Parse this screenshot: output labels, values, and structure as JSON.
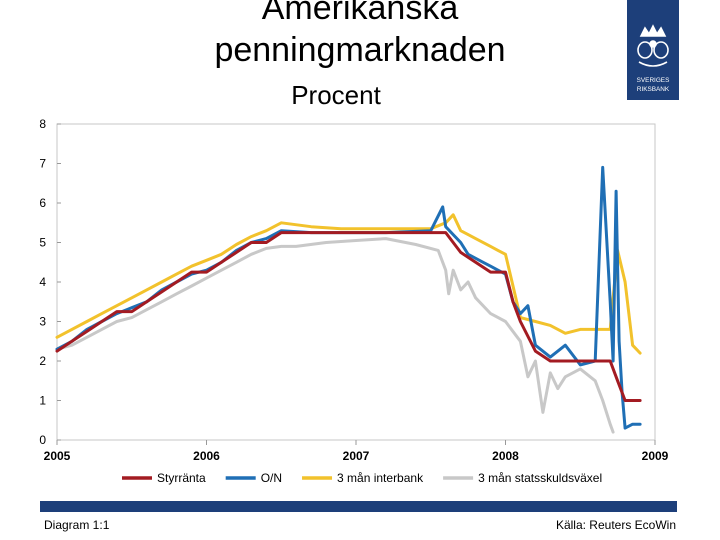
{
  "header": {
    "title_line1": "Amerikanska",
    "title_line2": "penningmarknaden",
    "subtitle": "Procent"
  },
  "logo": {
    "text1": "SVERIGES",
    "text2": "RIKSBANK",
    "icon": "riksbank-crown-emblem"
  },
  "footer": {
    "left": "Diagram 1:1",
    "right": "Källa: Reuters EcoWin"
  },
  "colors": {
    "brand": "#1d3f7a",
    "styrranta": "#a31b22",
    "on": "#1f6fb5",
    "interbank": "#f2c22c",
    "statsskuld": "#c8c8c8"
  },
  "chart_data": {
    "type": "line",
    "title": "",
    "xlabel": "",
    "ylabel": "",
    "xlim": [
      2005,
      2009
    ],
    "ylim": [
      0,
      8
    ],
    "x_ticks": [
      "2005",
      "2006",
      "2007",
      "2008",
      "2009"
    ],
    "y_ticks": [
      "0",
      "1",
      "2",
      "3",
      "4",
      "5",
      "6",
      "7",
      "8"
    ],
    "grid": false,
    "legend": "bottom",
    "series": [
      {
        "name": "Styrränta",
        "color": "#a31b22",
        "x": [
          2005.0,
          2005.1,
          2005.2,
          2005.3,
          2005.4,
          2005.5,
          2005.6,
          2005.7,
          2005.8,
          2005.9,
          2006.0,
          2006.1,
          2006.2,
          2006.3,
          2006.4,
          2006.5,
          2006.55,
          2006.7,
          2006.9,
          2007.2,
          2007.5,
          2007.6,
          2007.7,
          2007.8,
          2007.9,
          2008.0,
          2008.05,
          2008.1,
          2008.2,
          2008.3,
          2008.5,
          2008.7,
          2008.75,
          2008.8,
          2008.9
        ],
        "y": [
          2.25,
          2.5,
          2.75,
          3.0,
          3.25,
          3.25,
          3.5,
          3.75,
          4.0,
          4.25,
          4.25,
          4.5,
          4.75,
          5.0,
          5.0,
          5.25,
          5.25,
          5.25,
          5.25,
          5.25,
          5.25,
          5.25,
          4.75,
          4.5,
          4.25,
          4.25,
          3.5,
          3.0,
          2.25,
          2.0,
          2.0,
          2.0,
          1.5,
          1.0,
          1.0
        ]
      },
      {
        "name": "O/N",
        "color": "#1f6fb5",
        "x": [
          2005.0,
          2005.1,
          2005.2,
          2005.3,
          2005.4,
          2005.5,
          2005.6,
          2005.7,
          2005.8,
          2005.9,
          2006.0,
          2006.1,
          2006.2,
          2006.3,
          2006.4,
          2006.5,
          2006.7,
          2006.9,
          2007.2,
          2007.5,
          2007.58,
          2007.6,
          2007.65,
          2007.7,
          2007.75,
          2007.8,
          2007.85,
          2007.9,
          2007.95,
          2008.0,
          2008.05,
          2008.1,
          2008.15,
          2008.2,
          2008.3,
          2008.4,
          2008.5,
          2008.6,
          2008.65,
          2008.7,
          2008.72,
          2008.74,
          2008.76,
          2008.78,
          2008.8,
          2008.85,
          2008.9
        ],
        "y": [
          2.3,
          2.5,
          2.8,
          3.0,
          3.2,
          3.35,
          3.5,
          3.8,
          4.0,
          4.2,
          4.3,
          4.5,
          4.8,
          5.0,
          5.1,
          5.3,
          5.25,
          5.25,
          5.25,
          5.3,
          5.9,
          5.4,
          5.2,
          5.0,
          4.7,
          4.6,
          4.5,
          4.4,
          4.3,
          4.2,
          3.5,
          3.2,
          3.4,
          2.4,
          2.1,
          2.4,
          1.9,
          2.0,
          6.9,
          3.5,
          2.0,
          6.3,
          2.5,
          1.2,
          0.3,
          0.4,
          0.4
        ]
      },
      {
        "name": "3 mån interbank",
        "color": "#f2c22c",
        "x": [
          2005.0,
          2005.1,
          2005.2,
          2005.3,
          2005.4,
          2005.5,
          2005.6,
          2005.7,
          2005.8,
          2005.9,
          2006.0,
          2006.1,
          2006.2,
          2006.3,
          2006.4,
          2006.5,
          2006.7,
          2006.9,
          2007.2,
          2007.5,
          2007.6,
          2007.65,
          2007.7,
          2007.75,
          2007.8,
          2007.9,
          2007.95,
          2008.0,
          2008.05,
          2008.1,
          2008.2,
          2008.3,
          2008.4,
          2008.5,
          2008.6,
          2008.7,
          2008.75,
          2008.8,
          2008.85,
          2008.9
        ],
        "y": [
          2.6,
          2.8,
          3.0,
          3.2,
          3.4,
          3.6,
          3.8,
          4.0,
          4.2,
          4.4,
          4.55,
          4.7,
          4.95,
          5.15,
          5.3,
          5.5,
          5.4,
          5.35,
          5.35,
          5.35,
          5.5,
          5.7,
          5.3,
          5.2,
          5.1,
          4.9,
          4.8,
          4.7,
          3.9,
          3.1,
          3.0,
          2.9,
          2.7,
          2.8,
          2.8,
          2.8,
          4.8,
          4.0,
          2.4,
          2.2
        ]
      },
      {
        "name": "3 mån statsskuldsväxel",
        "color": "#c8c8c8",
        "x": [
          2005.0,
          2005.1,
          2005.2,
          2005.3,
          2005.4,
          2005.5,
          2005.6,
          2005.7,
          2005.8,
          2005.9,
          2006.0,
          2006.1,
          2006.2,
          2006.3,
          2006.4,
          2006.5,
          2006.6,
          2006.8,
          2007.0,
          2007.2,
          2007.4,
          2007.55,
          2007.6,
          2007.62,
          2007.65,
          2007.7,
          2007.75,
          2007.8,
          2007.9,
          2008.0,
          2008.1,
          2008.15,
          2008.2,
          2008.25,
          2008.3,
          2008.35,
          2008.4,
          2008.5,
          2008.6,
          2008.65,
          2008.7,
          2008.72
        ],
        "y": [
          2.3,
          2.4,
          2.6,
          2.8,
          3.0,
          3.1,
          3.3,
          3.5,
          3.7,
          3.9,
          4.1,
          4.3,
          4.5,
          4.7,
          4.85,
          4.9,
          4.9,
          5.0,
          5.05,
          5.1,
          4.95,
          4.8,
          4.3,
          3.7,
          4.3,
          3.8,
          4.0,
          3.6,
          3.2,
          3.0,
          2.5,
          1.6,
          2.0,
          0.7,
          1.7,
          1.3,
          1.6,
          1.8,
          1.5,
          1.0,
          0.4,
          0.2
        ]
      }
    ]
  }
}
